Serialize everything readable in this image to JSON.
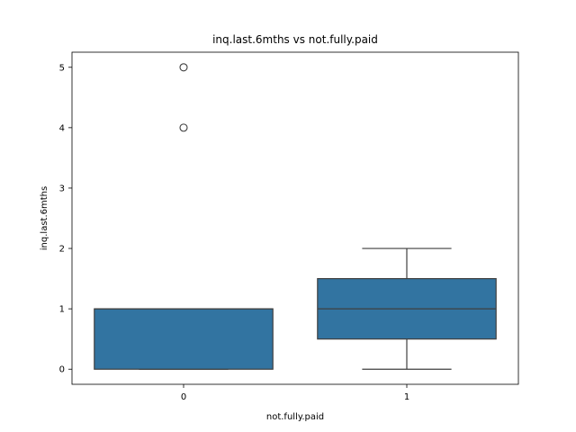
{
  "chart_data": {
    "type": "box",
    "title": "inq.last.6mths vs not.fully.paid",
    "xlabel": "not.fully.paid",
    "ylabel": "inq.last.6mths",
    "categories": [
      "0",
      "1"
    ],
    "boxes": [
      {
        "category": "0",
        "whisker_low": 0,
        "q1": 0,
        "median": 1,
        "q3": 1,
        "whisker_high": 1,
        "outliers": [
          4,
          5
        ]
      },
      {
        "category": "1",
        "whisker_low": 0,
        "q1": 0.5,
        "median": 1,
        "q3": 1.5,
        "whisker_high": 2,
        "outliers": []
      }
    ],
    "yticks": [
      0,
      1,
      2,
      3,
      4,
      5
    ],
    "ylim": [
      -0.25,
      5.25
    ],
    "grid": false,
    "box_color": "#3274a1",
    "line_color": "#3f3f3f"
  }
}
